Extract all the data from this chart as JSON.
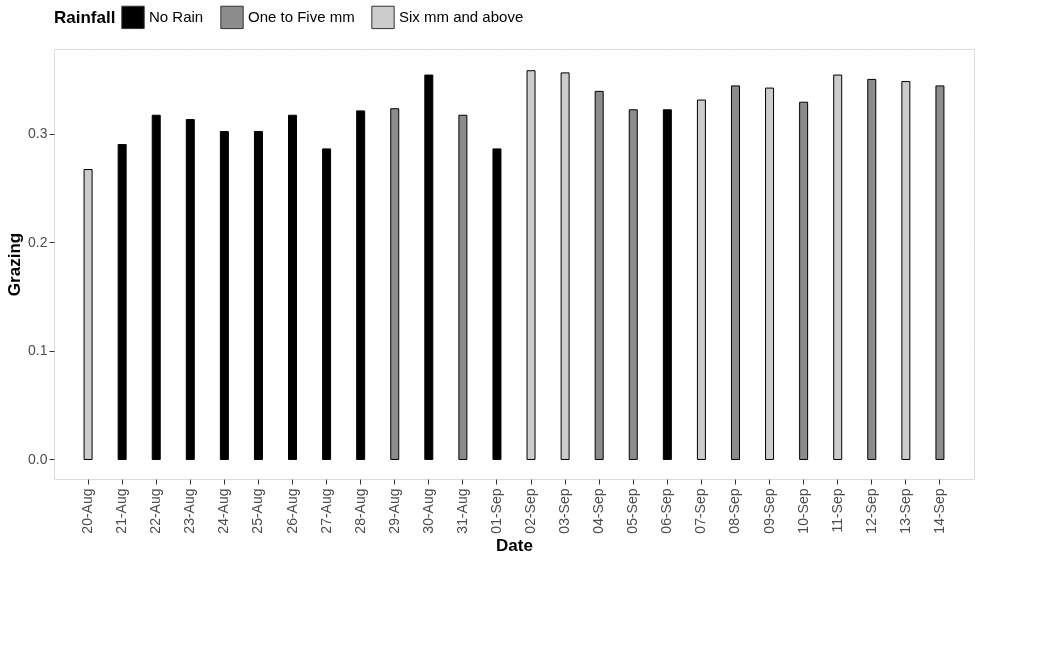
{
  "chart_data": {
    "type": "bar",
    "xlabel": "Date",
    "ylabel": "Grazing",
    "legend_title": "Rainfall",
    "legend": "top",
    "grid": true,
    "categories": [
      "20-Aug",
      "21-Aug",
      "22-Aug",
      "23-Aug",
      "24-Aug",
      "25-Aug",
      "26-Aug",
      "27-Aug",
      "28-Aug",
      "29-Aug",
      "30-Aug",
      "31-Aug",
      "01-Sep",
      "02-Sep",
      "03-Sep",
      "04-Sep",
      "05-Sep",
      "06-Sep",
      "07-Sep",
      "08-Sep",
      "09-Sep",
      "10-Sep",
      "11-Sep",
      "12-Sep",
      "13-Sep",
      "14-Sep"
    ],
    "ylim": [
      -0.018,
      0.378
    ],
    "yticks": [
      {
        "value": 0,
        "label": "0.0"
      },
      {
        "value": 0.1,
        "label": "0.1"
      },
      {
        "value": 0.2,
        "label": "0.2"
      },
      {
        "value": 0.3,
        "label": "0.3"
      }
    ],
    "series": [
      {
        "name": "No Rain",
        "color": "#000000",
        "values": [
          null,
          0.29,
          0.317,
          0.313,
          0.302,
          0.302,
          0.317,
          0.286,
          0.321,
          null,
          0.354,
          null,
          0.286,
          null,
          null,
          null,
          null,
          0.322,
          null,
          null,
          null,
          null,
          null,
          null,
          null,
          null
        ]
      },
      {
        "name": "One to Five mm",
        "color": "#8c8c8c",
        "values": [
          null,
          null,
          null,
          null,
          null,
          null,
          null,
          null,
          null,
          0.323,
          null,
          0.317,
          null,
          null,
          null,
          0.339,
          0.322,
          null,
          null,
          0.344,
          null,
          0.329,
          null,
          0.35,
          null,
          0.344
        ]
      },
      {
        "name": "Six mm and above",
        "color": "#cccccc",
        "values": [
          0.267,
          null,
          null,
          null,
          null,
          null,
          null,
          null,
          null,
          null,
          null,
          null,
          null,
          0.358,
          0.356,
          null,
          null,
          null,
          0.331,
          null,
          0.342,
          null,
          0.354,
          null,
          0.348,
          null
        ]
      }
    ]
  }
}
